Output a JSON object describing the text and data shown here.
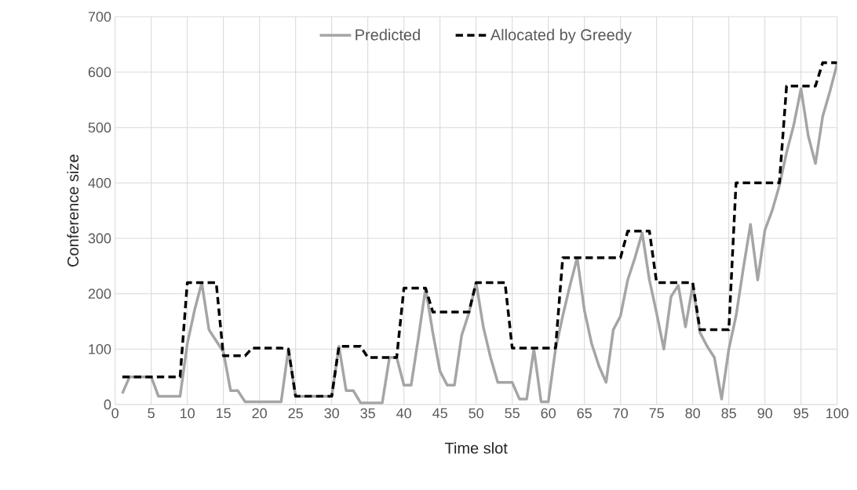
{
  "chart_data": {
    "type": "line",
    "xlabel": "Time slot",
    "ylabel": "Conference size",
    "x": [
      1,
      2,
      3,
      4,
      5,
      6,
      7,
      8,
      9,
      10,
      11,
      12,
      13,
      14,
      15,
      16,
      17,
      18,
      19,
      20,
      21,
      22,
      23,
      24,
      25,
      26,
      27,
      28,
      29,
      30,
      31,
      32,
      33,
      34,
      35,
      36,
      37,
      38,
      39,
      40,
      41,
      42,
      43,
      44,
      45,
      46,
      47,
      48,
      49,
      50,
      51,
      52,
      53,
      54,
      55,
      56,
      57,
      58,
      59,
      60,
      61,
      62,
      63,
      64,
      65,
      66,
      67,
      68,
      69,
      70,
      71,
      72,
      73,
      74,
      75,
      76,
      77,
      78,
      79,
      80,
      81,
      82,
      83,
      84,
      85,
      86,
      87,
      88,
      89,
      90,
      91,
      92,
      93,
      94,
      95,
      96,
      97,
      98,
      99,
      100
    ],
    "series": [
      {
        "name": "Predicted",
        "color": "#a5a5a5",
        "line_style": "solid",
        "values": [
          20,
          50,
          50,
          50,
          50,
          15,
          15,
          15,
          15,
          110,
          170,
          220,
          135,
          115,
          95,
          25,
          25,
          5,
          5,
          5,
          5,
          5,
          5,
          100,
          15,
          15,
          15,
          15,
          15,
          15,
          105,
          25,
          25,
          3,
          3,
          3,
          3,
          85,
          85,
          35,
          35,
          120,
          210,
          130,
          60,
          35,
          35,
          125,
          165,
          220,
          140,
          85,
          40,
          40,
          40,
          10,
          10,
          100,
          5,
          5,
          100,
          160,
          215,
          265,
          170,
          110,
          70,
          40,
          135,
          160,
          225,
          265,
          310,
          225,
          165,
          100,
          195,
          215,
          140,
          215,
          130,
          105,
          85,
          10,
          100,
          160,
          245,
          325,
          225,
          315,
          350,
          395,
          455,
          505,
          570,
          485,
          435,
          520,
          565,
          615
        ]
      },
      {
        "name": "Allocated by Greedy",
        "color": "#000000",
        "line_style": "dashed",
        "values": [
          50,
          50,
          50,
          50,
          50,
          50,
          50,
          50,
          50,
          220,
          220,
          220,
          220,
          220,
          88,
          88,
          88,
          88,
          102,
          102,
          102,
          102,
          102,
          100,
          15,
          15,
          15,
          15,
          15,
          15,
          105,
          105,
          105,
          105,
          85,
          85,
          85,
          85,
          85,
          210,
          210,
          210,
          210,
          167,
          167,
          167,
          167,
          167,
          167,
          220,
          220,
          220,
          220,
          220,
          102,
          102,
          102,
          102,
          102,
          102,
          102,
          265,
          265,
          265,
          265,
          265,
          265,
          265,
          265,
          265,
          313,
          313,
          313,
          313,
          220,
          220,
          220,
          220,
          220,
          220,
          135,
          135,
          135,
          135,
          135,
          400,
          400,
          400,
          400,
          400,
          400,
          400,
          575,
          575,
          575,
          575,
          575,
          617,
          617,
          617
        ]
      }
    ],
    "xlim": [
      0,
      100
    ],
    "ylim": [
      0,
      700
    ],
    "xticks": [
      0,
      5,
      10,
      15,
      20,
      25,
      30,
      35,
      40,
      45,
      50,
      55,
      60,
      65,
      70,
      75,
      80,
      85,
      90,
      95,
      100
    ],
    "yticks": [
      0,
      100,
      200,
      300,
      400,
      500,
      600,
      700
    ],
    "grid": true,
    "legend": "top",
    "marker": "none"
  }
}
